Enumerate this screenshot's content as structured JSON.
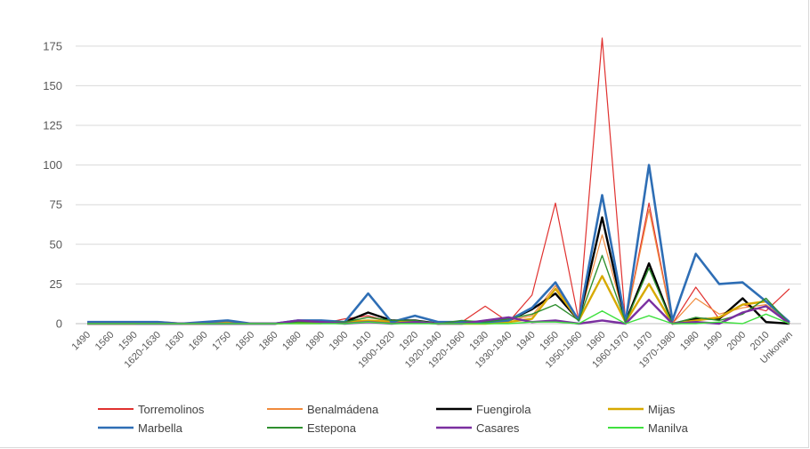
{
  "chart_data": {
    "type": "line",
    "title": "",
    "xlabel": "",
    "ylabel": "",
    "ylim": [
      0,
      185
    ],
    "yticks": [
      0,
      25,
      50,
      75,
      100,
      125,
      150,
      175
    ],
    "grid": "horizontal",
    "legend_position": "bottom",
    "categories": [
      "1490",
      "1560",
      "1590",
      "1620-1630",
      "1630",
      "1690",
      "1750",
      "1850",
      "1860",
      "1880",
      "1890",
      "1900",
      "1910",
      "1900-1920",
      "1920",
      "1920-1940",
      "1920-1960",
      "1930",
      "1930-1940",
      "1940",
      "1950",
      "1950-1960",
      "1960",
      "1960-1970",
      "1970",
      "1970-1980",
      "1980",
      "1990",
      "2000",
      "2010",
      "Unknown"
    ],
    "category_labels": [
      "1490",
      "1560",
      "1590",
      "1620-1630",
      "1630",
      "1690",
      "1750",
      "1850",
      "1860",
      "1880",
      "1890",
      "1900",
      "1910",
      "1900-1920",
      "1920",
      "1920-1940",
      "1920-1960",
      "1930",
      "1930-1940",
      "1940",
      "1950",
      "1950-1960",
      "1960",
      "1960-1970",
      "1970",
      "1970-1980",
      "1980",
      "1990",
      "2000",
      "2010",
      "Unkonwn"
    ],
    "series": [
      {
        "name": "Torremolinos",
        "color": "#e0312f",
        "width": 1.2,
        "values": [
          0,
          0,
          0,
          0,
          0,
          0,
          0,
          0,
          0,
          0,
          0,
          3,
          5,
          1,
          2,
          0,
          1,
          11,
          1,
          18,
          76,
          2,
          180,
          1,
          76,
          0,
          23,
          3,
          12,
          8,
          22
        ]
      },
      {
        "name": "Benalmádena",
        "color": "#f08a3c",
        "width": 1.2,
        "values": [
          0,
          0,
          0,
          0,
          0,
          0,
          0,
          0,
          0,
          1,
          1,
          1,
          4,
          1,
          2,
          0,
          0,
          1,
          2,
          5,
          24,
          2,
          56,
          1,
          72,
          0,
          16,
          6,
          10,
          12,
          0
        ]
      },
      {
        "name": "Fuengirola",
        "color": "#000000",
        "width": 2.4,
        "values": [
          0,
          0,
          0,
          0,
          0,
          0,
          0,
          0,
          0,
          1,
          1,
          1,
          7,
          2,
          2,
          0,
          1,
          1,
          2,
          9,
          19,
          2,
          67,
          1,
          38,
          0,
          3,
          3,
          16,
          1,
          0
        ]
      },
      {
        "name": "Mijas",
        "color": "#d7a900",
        "width": 2.4,
        "values": [
          0,
          0,
          0,
          1,
          0,
          0,
          1,
          0,
          0,
          1,
          1,
          1,
          2,
          1,
          1,
          0,
          0,
          0,
          1,
          3,
          22,
          2,
          30,
          1,
          25,
          0,
          2,
          4,
          12,
          14,
          0
        ]
      },
      {
        "name": "Marbella",
        "color": "#2e6eb5",
        "width": 2.6,
        "values": [
          1,
          1,
          1,
          1,
          0,
          1,
          2,
          0,
          0,
          2,
          2,
          1,
          19,
          1,
          5,
          1,
          1,
          1,
          2,
          10,
          26,
          2,
          81,
          1,
          100,
          2,
          44,
          25,
          26,
          14,
          1
        ]
      },
      {
        "name": "Estepona",
        "color": "#2f8f2f",
        "width": 1.4,
        "values": [
          0,
          0,
          0,
          0,
          0,
          0,
          0,
          0,
          0,
          1,
          1,
          1,
          4,
          2,
          2,
          0,
          2,
          1,
          3,
          6,
          12,
          2,
          43,
          1,
          35,
          0,
          4,
          2,
          6,
          16,
          0
        ]
      },
      {
        "name": "Casares",
        "color": "#7a2fa0",
        "width": 2.4,
        "values": [
          0,
          0,
          0,
          0,
          0,
          0,
          0,
          0,
          0,
          2,
          1,
          0,
          1,
          0,
          1,
          0,
          0,
          2,
          4,
          1,
          2,
          0,
          2,
          0,
          15,
          0,
          1,
          0,
          7,
          11,
          0
        ]
      },
      {
        "name": "Manilva",
        "color": "#3fe03f",
        "width": 1.4,
        "values": [
          0,
          0,
          0,
          0,
          0,
          0,
          0,
          0,
          0,
          0,
          0,
          0,
          1,
          0,
          0,
          0,
          0,
          0,
          0,
          1,
          1,
          0,
          8,
          0,
          5,
          0,
          0,
          1,
          0,
          6,
          0
        ]
      }
    ]
  }
}
